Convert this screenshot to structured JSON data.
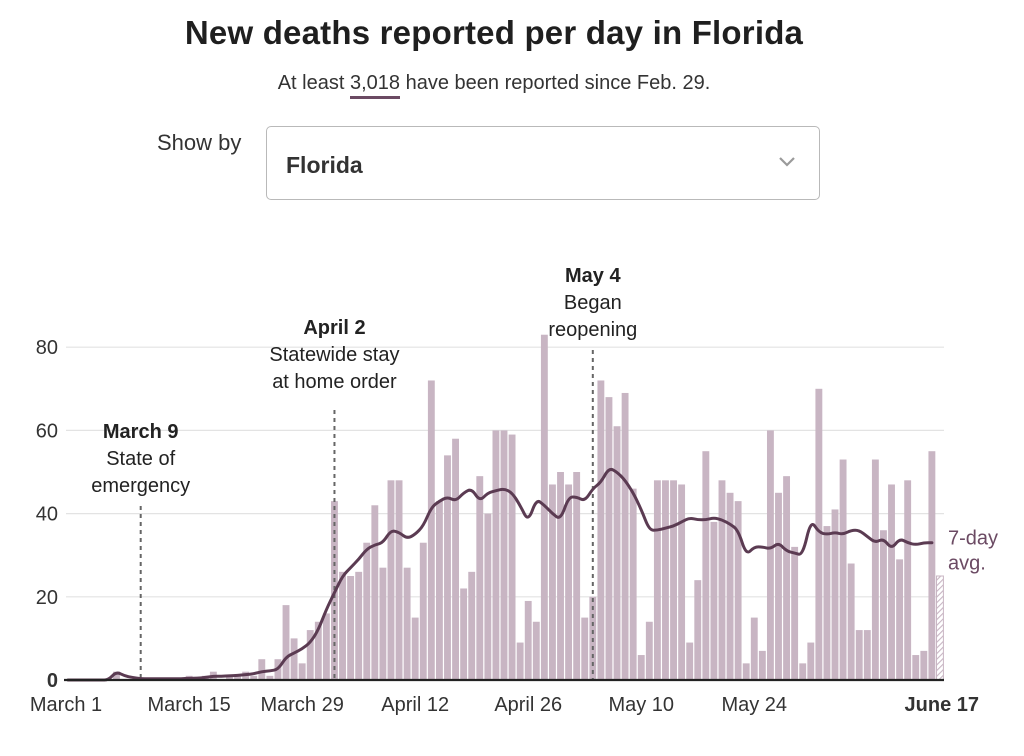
{
  "header": {
    "title": "New deaths reported per day in Florida",
    "subtitle_prefix": "At least",
    "subtitle_number": "3,018",
    "subtitle_suffix": "have been reported since Feb. 29."
  },
  "controls": {
    "show_by_label": "Show by",
    "selected_value": "Florida"
  },
  "colors": {
    "bar": "#c8b5c3",
    "line": "#5b3b52",
    "grid": "#e3e3e3",
    "annotation_text": "#222222"
  },
  "chart_data": {
    "type": "bar",
    "title": "New deaths reported per day in Florida",
    "xlabel": "",
    "ylabel": "",
    "ylim": [
      0,
      90
    ],
    "yticks": [
      0,
      20,
      40,
      60,
      80
    ],
    "start_date": "Feb. 29",
    "x_tick_labels": [
      {
        "label": "March 1",
        "day_index": 1
      },
      {
        "label": "March 15",
        "day_index": 15
      },
      {
        "label": "March 29",
        "day_index": 29
      },
      {
        "label": "April 12",
        "day_index": 43
      },
      {
        "label": "April 26",
        "day_index": 57
      },
      {
        "label": "May 10",
        "day_index": 71
      },
      {
        "label": "May 24",
        "day_index": 85
      },
      {
        "label": "June 17",
        "day_index": 109,
        "bold": true
      }
    ],
    "series": [
      {
        "name": "New deaths",
        "values": [
          0,
          0,
          0,
          0,
          0,
          0,
          2,
          0,
          0,
          0,
          0,
          0,
          0,
          0,
          0,
          1,
          0,
          1,
          2,
          0,
          1,
          1,
          2,
          1,
          5,
          1,
          5,
          18,
          10,
          4,
          12,
          14,
          16,
          43,
          26,
          25,
          26,
          33,
          42,
          27,
          48,
          48,
          27,
          15,
          33,
          72,
          43,
          54,
          58,
          22,
          26,
          49,
          40,
          60,
          60,
          59,
          9,
          19,
          14,
          83,
          47,
          50,
          47,
          50,
          15,
          20,
          72,
          68,
          61,
          69,
          46,
          6,
          14,
          48,
          48,
          48,
          47,
          9,
          24,
          55,
          38,
          48,
          45,
          43,
          4,
          15,
          7,
          60,
          45,
          49,
          32,
          4,
          9,
          70,
          37,
          41,
          53,
          28,
          12,
          12,
          53,
          36,
          47,
          29,
          48,
          6,
          7,
          55,
          25
        ],
        "last_value_incomplete": true
      },
      {
        "name": "7-day avg.",
        "legend_label_line1": "7-day",
        "legend_label_line2": "avg.",
        "values": [
          0,
          0,
          0,
          0,
          0,
          0,
          2,
          1,
          0.6,
          0.3,
          0.3,
          0.3,
          0.3,
          0.3,
          0.3,
          0.4,
          0.4,
          0.6,
          0.9,
          0.9,
          1,
          1.1,
          1.3,
          1.5,
          2,
          2.2,
          2.5,
          5.5,
          6.5,
          7.5,
          9,
          12,
          17,
          21,
          25,
          27,
          29,
          31.5,
          32.5,
          33,
          36,
          35.5,
          34,
          35,
          37,
          41.5,
          43,
          44,
          43,
          45,
          46,
          43,
          45,
          45.5,
          46,
          45,
          42,
          38,
          43.5,
          42,
          40,
          38.5,
          44,
          44,
          43,
          46,
          47.5,
          51,
          50,
          48,
          45,
          41,
          36,
          36,
          36.5,
          37,
          38,
          39,
          38.5,
          38.5,
          39,
          38.5,
          37.5,
          36,
          30,
          32,
          32,
          31.5,
          33,
          31,
          30.5,
          30,
          38.5,
          35.5,
          35,
          35.5,
          35,
          36,
          36,
          34.5,
          33,
          34,
          31.5,
          34,
          33,
          32.5,
          33,
          33
        ]
      }
    ],
    "annotations": [
      {
        "title": "March 9",
        "lines": [
          "State of",
          "emergency"
        ],
        "day_index": 9
      },
      {
        "title": "April 2",
        "lines": [
          "Statewide stay",
          "at home order"
        ],
        "day_index": 33
      },
      {
        "title": "May 4",
        "lines": [
          "Began",
          "reopening"
        ],
        "day_index": 65
      }
    ]
  }
}
